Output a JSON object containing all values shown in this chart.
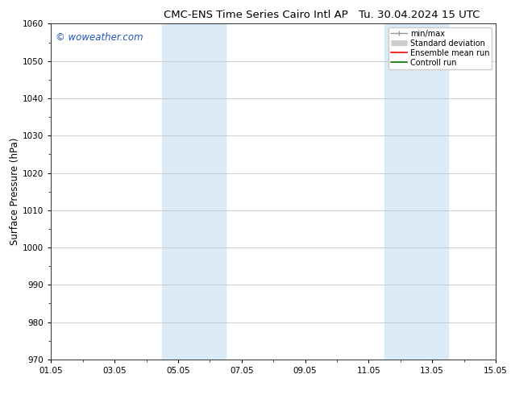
{
  "title": "CMC-ENS Time Series Cairo Intl AP     Tu. 30.04.2024 15 UTC",
  "title_left": "CMC-ENS Time Series Cairo Intl AP",
  "title_right": "Tu. 30.04.2024 15 UTC",
  "ylabel": "Surface Pressure (hPa)",
  "ylim": [
    970,
    1060
  ],
  "yticks": [
    970,
    980,
    990,
    1000,
    1010,
    1020,
    1030,
    1040,
    1050,
    1060
  ],
  "xlim": [
    0,
    14
  ],
  "xtick_positions": [
    0,
    2,
    4,
    6,
    8,
    10,
    12,
    14
  ],
  "xtick_labels": [
    "01.05",
    "03.05",
    "05.05",
    "07.05",
    "09.05",
    "11.05",
    "13.05",
    "15.05"
  ],
  "watermark": "© woweather.com",
  "watermark_color": "#2255bb",
  "background_color": "#ffffff",
  "shaded_regions": [
    {
      "x_start": 3.5,
      "x_end": 5.5
    },
    {
      "x_start": 10.5,
      "x_end": 12.5
    }
  ],
  "shaded_color": "#daeaf7",
  "legend_entries": [
    {
      "label": "min/max",
      "color": "#999999",
      "linestyle": "-",
      "linewidth": 1.0
    },
    {
      "label": "Standard deviation",
      "color": "#cccccc",
      "linestyle": "-",
      "linewidth": 5
    },
    {
      "label": "Ensemble mean run",
      "color": "#ff0000",
      "linestyle": "-",
      "linewidth": 1.2
    },
    {
      "label": "Controll run",
      "color": "#007700",
      "linestyle": "-",
      "linewidth": 1.2
    }
  ],
  "grid_color": "#bbbbbb",
  "tick_font_size": 7.5,
  "label_font_size": 8.5,
  "title_font_size": 9.5,
  "watermark_font_size": 8.5,
  "legend_font_size": 7.0
}
